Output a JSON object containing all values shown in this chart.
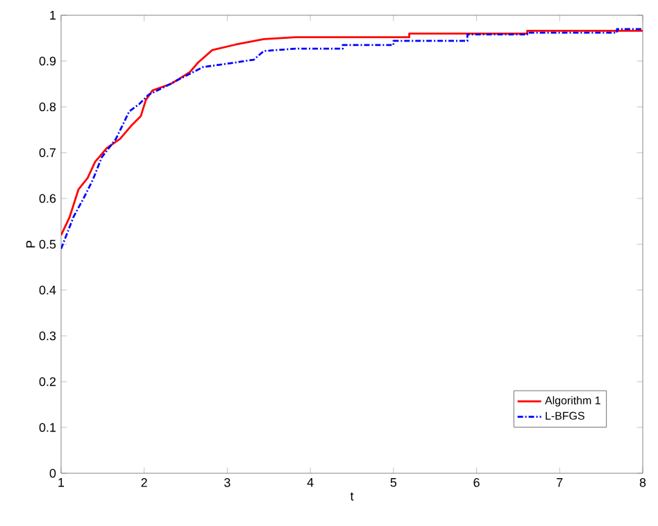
{
  "chart_data": {
    "type": "line",
    "xlabel": "t",
    "ylabel": "P",
    "xlim": [
      1,
      8
    ],
    "ylim": [
      0,
      1
    ],
    "xticks": [
      1,
      2,
      3,
      4,
      5,
      6,
      7,
      8
    ],
    "yticks": [
      0,
      0.1,
      0.2,
      0.3,
      0.4,
      0.5,
      0.6,
      0.7,
      0.8,
      0.9,
      1
    ],
    "legend": "bottom right",
    "grid": false,
    "series": [
      {
        "name": "Algorithm 1",
        "color": "#ff0000",
        "line_style": "solid",
        "x": [
          1,
          1.1,
          1.21,
          1.32,
          1.41,
          1.55,
          1.71,
          1.85,
          1.96,
          2.02,
          2.1,
          2.32,
          2.55,
          2.65,
          2.82,
          3.1,
          3.44,
          3.82,
          5.19,
          5.19,
          6.61,
          6.61,
          8
        ],
        "values": [
          0.52,
          0.558,
          0.62,
          0.645,
          0.68,
          0.71,
          0.73,
          0.76,
          0.78,
          0.815,
          0.836,
          0.85,
          0.876,
          0.897,
          0.924,
          0.936,
          0.948,
          0.952,
          0.952,
          0.96,
          0.96,
          0.966,
          0.966
        ]
      },
      {
        "name": "L-BFGS",
        "color": "#0000ff",
        "line_style": "dashed",
        "x": [
          1,
          1.15,
          1.27,
          1.38,
          1.49,
          1.66,
          1.82,
          1.94,
          2.05,
          2.27,
          2.44,
          2.71,
          2.99,
          3.32,
          3.44,
          3.82,
          4.39,
          4.39,
          5.0,
          5.0,
          5.89,
          5.89,
          6.61,
          6.61,
          7.69,
          7.69,
          8
        ],
        "values": [
          0.49,
          0.56,
          0.6,
          0.64,
          0.69,
          0.73,
          0.79,
          0.806,
          0.826,
          0.846,
          0.862,
          0.887,
          0.894,
          0.903,
          0.922,
          0.927,
          0.927,
          0.935,
          0.935,
          0.944,
          0.944,
          0.958,
          0.958,
          0.962,
          0.962,
          0.97,
          0.97
        ]
      }
    ]
  }
}
